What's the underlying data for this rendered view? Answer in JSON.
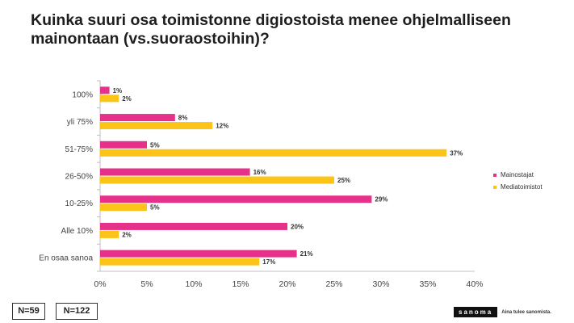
{
  "title": "Kuinka suuri osa toimistonne digiostoista menee ohjelmalliseen mainontaan (vs.suoraostoihin)?",
  "chart_data": {
    "type": "bar",
    "orientation": "horizontal",
    "categories": [
      "100%",
      "yli 75%",
      "51-75%",
      "26-50%",
      "10-25%",
      "Alle 10%",
      "En osaa sanoa"
    ],
    "series": [
      {
        "name": "Mainostajat",
        "color": "#e6318a",
        "values": [
          1,
          8,
          5,
          16,
          29,
          20,
          21
        ],
        "labels": [
          "1%",
          "8%",
          "5%",
          "16%",
          "29%",
          "20%",
          "21%"
        ]
      },
      {
        "name": "Mediatoimistot",
        "color": "#fcc419",
        "values": [
          2,
          12,
          37,
          25,
          5,
          2,
          17
        ],
        "labels": [
          "2%",
          "12%",
          "37%",
          "25%",
          "5%",
          "2%",
          "17%"
        ]
      }
    ],
    "xlim": [
      0,
      40
    ],
    "xticks": [
      0,
      5,
      10,
      15,
      20,
      25,
      30,
      35,
      40
    ],
    "xtick_labels": [
      "0%",
      "5%",
      "10%",
      "15%",
      "20%",
      "25%",
      "30%",
      "35%",
      "40%"
    ],
    "legend_position": "right",
    "grid": false
  },
  "sample_sizes": {
    "mainostajat": "N=59",
    "mediatoimistot": "N=122"
  },
  "footer": {
    "logo": "sanoma",
    "tagline": "Aina tulee sanomista."
  }
}
